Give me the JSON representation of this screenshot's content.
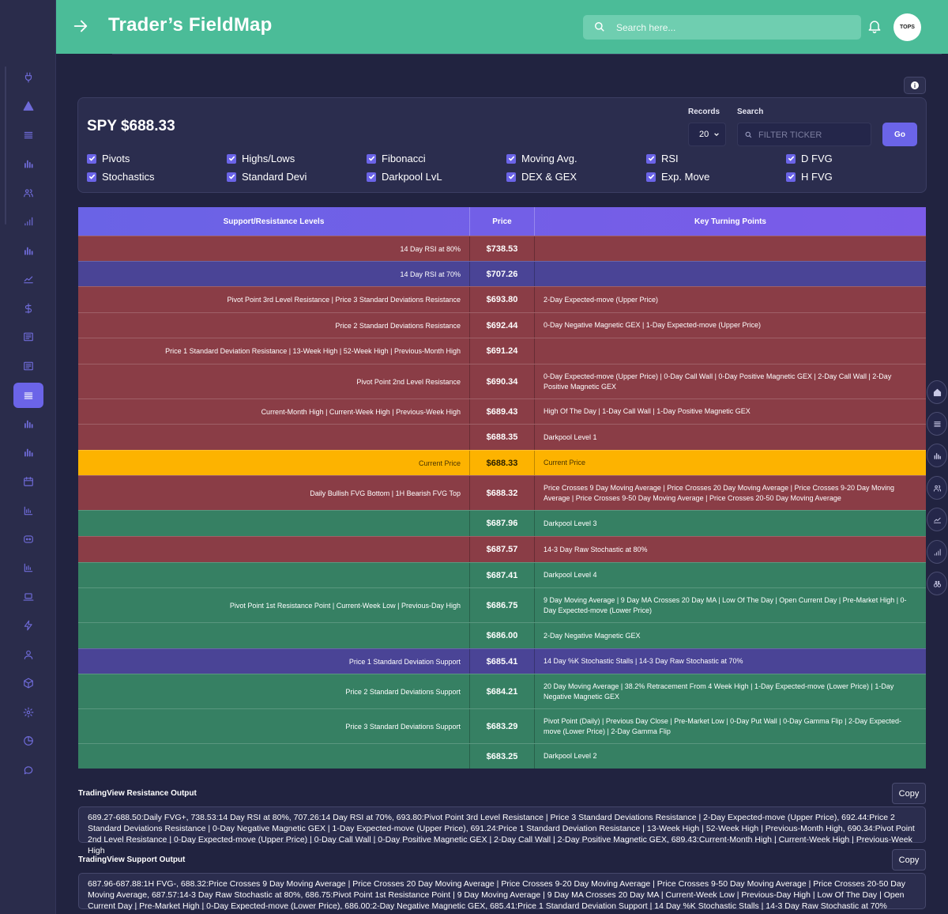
{
  "header": {
    "title": "Trader’s FieldMap",
    "search_placeholder": "Search here...",
    "avatar_text": "TOPS"
  },
  "sidebar": {
    "icons": [
      "plug-icon",
      "alert-icon",
      "list-icon",
      "bar-chart-icon",
      "users-icon",
      "signal-icon",
      "bar-chart-icon",
      "line-chart-icon",
      "dollar-icon",
      "newspaper-icon",
      "newspaper-icon",
      "layers-icon",
      "bar-chart-icon",
      "bar-chart-icon",
      "calendar-icon",
      "chart-icon",
      "discord-icon",
      "chart-icon",
      "laptop-icon",
      "bolt-icon",
      "user-icon",
      "cube-icon",
      "gear-icon",
      "pie-icon",
      "chat-icon"
    ],
    "active_index": 11
  },
  "panel": {
    "ticker": "SPY $688.33",
    "records_label": "Records",
    "records_value": "20",
    "search_label": "Search",
    "filter_placeholder": "FILTER TICKER",
    "go_label": "Go",
    "checkboxes": [
      {
        "label": "Pivots",
        "checked": true
      },
      {
        "label": "Highs/Lows",
        "checked": true
      },
      {
        "label": "Fibonacci",
        "checked": true
      },
      {
        "label": "Moving Avg.",
        "checked": true
      },
      {
        "label": "RSI",
        "checked": true
      },
      {
        "label": "D FVG",
        "checked": true
      },
      {
        "label": "Stochastics",
        "checked": true
      },
      {
        "label": "Standard Devi",
        "checked": true
      },
      {
        "label": "Darkpool LvL",
        "checked": true
      },
      {
        "label": "DEX & GEX",
        "checked": true
      },
      {
        "label": "Exp. Move",
        "checked": true
      },
      {
        "label": "H FVG",
        "checked": true
      }
    ]
  },
  "table": {
    "headers": [
      "Support/Resistance Levels",
      "Price",
      "Key Turning Points"
    ],
    "colors": {
      "red": "#8a3d46",
      "blue": "#4a4496",
      "green": "#368063",
      "gold": "#fdb300"
    },
    "rows": [
      {
        "color": "red",
        "sr": "14 Day RSI at 80%",
        "price": "$738.53",
        "ktp": ""
      },
      {
        "color": "blue",
        "sr": "14 Day RSI at 70%",
        "price": "$707.26",
        "ktp": ""
      },
      {
        "color": "red",
        "sr": "Pivot Point 3rd Level Resistance | Price 3 Standard Deviations Resistance",
        "price": "$693.80",
        "ktp": "2-Day Expected-move (Upper Price)"
      },
      {
        "color": "red",
        "sr": "Price 2 Standard Deviations Resistance",
        "price": "$692.44",
        "ktp": "0-Day Negative Magnetic GEX | 1-Day Expected-move (Upper Price)"
      },
      {
        "color": "red",
        "sr": "Price 1 Standard Deviation Resistance | 13-Week High | 52-Week High | Previous-Month High",
        "price": "$691.24",
        "ktp": ""
      },
      {
        "color": "red",
        "sr": "Pivot Point 2nd Level Resistance",
        "price": "$690.34",
        "ktp": "0-Day Expected-move (Upper Price) | 0-Day Call Wall | 0-Day Positive Magnetic GEX | 2-Day Call Wall | 2-Day Positive Magnetic GEX"
      },
      {
        "color": "red",
        "sr": "Current-Month High | Current-Week High | Previous-Week High",
        "price": "$689.43",
        "ktp": "High Of The Day | 1-Day Call Wall | 1-Day Positive Magnetic GEX"
      },
      {
        "color": "red",
        "sr": "",
        "price": "$688.35",
        "ktp": "Darkpool Level 1"
      },
      {
        "color": "gold",
        "sr": "Current Price",
        "price": "$688.33",
        "ktp": "Current Price"
      },
      {
        "color": "red",
        "sr": "Daily Bullish FVG Bottom | 1H Bearish FVG Top",
        "price": "$688.32",
        "ktp": "Price Crosses 9 Day Moving Average | Price Crosses 20 Day Moving Average | Price Crosses 9-20 Day Moving Average | Price Crosses 9-50 Day Moving Average | Price Crosses 20-50 Day Moving Average"
      },
      {
        "color": "green",
        "sr": "",
        "price": "$687.96",
        "ktp": "Darkpool Level 3"
      },
      {
        "color": "red",
        "sr": "",
        "price": "$687.57",
        "ktp": "14-3 Day Raw Stochastic at 80%"
      },
      {
        "color": "green",
        "sr": "",
        "price": "$687.41",
        "ktp": "Darkpool Level 4"
      },
      {
        "color": "green",
        "sr": "Pivot Point 1st Resistance Point | Current-Week Low | Previous-Day High",
        "price": "$686.75",
        "ktp": "9 Day Moving Average | 9 Day MA Crosses 20 Day MA | Low Of The Day | Open Current Day | Pre-Market High | 0-Day Expected-move (Lower Price)"
      },
      {
        "color": "green",
        "sr": "",
        "price": "$686.00",
        "ktp": "2-Day Negative Magnetic GEX"
      },
      {
        "color": "blue",
        "sr": "Price 1 Standard Deviation Support",
        "price": "$685.41",
        "ktp": "14 Day %K Stochastic Stalls | 14-3 Day Raw Stochastic at 70%"
      },
      {
        "color": "green",
        "sr": "Price 2 Standard Deviations Support",
        "price": "$684.21",
        "ktp": "20 Day Moving Average | 38.2% Retracement From 4 Week High | 1-Day Expected-move (Lower Price) | 1-Day Negative Magnetic GEX"
      },
      {
        "color": "green",
        "sr": "Price 3 Standard Deviations Support",
        "price": "$683.29",
        "ktp": "Pivot Point (Daily) | Previous Day Close | Pre-Market Low | 0-Day Put Wall | 0-Day Gamma Flip | 2-Day Expected-move (Lower Price) | 2-Day Gamma Flip"
      },
      {
        "color": "green",
        "sr": "",
        "price": "$683.25",
        "ktp": "Darkpool Level 2"
      }
    ]
  },
  "resistance_output": {
    "title": "TradingView Resistance Output",
    "copy_label": "Copy",
    "text": "689.27-688.50:Daily FVG+, 738.53:14 Day RSI at 80%, 707.26:14 Day RSI at 70%, 693.80:Pivot Point 3rd Level Resistance | Price 3 Standard Deviations Resistance | 2-Day Expected-move (Upper Price), 692.44:Price 2 Standard Deviations Resistance | 0-Day Negative Magnetic GEX | 1-Day Expected-move (Upper Price), 691.24:Price 1 Standard Deviation Resistance | 13-Week High | 52-Week High | Previous-Month High, 690.34:Pivot Point 2nd Level Resistance | 0-Day Expected-move (Upper Price) | 0-Day Call Wall | 0-Day Positive Magnetic GEX | 2-Day Call Wall | 2-Day Positive Magnetic GEX, 689.43:Current-Month High | Current-Week High | Previous-Week High"
  },
  "support_output": {
    "title": "TradingView Support Output",
    "copy_label": "Copy",
    "text": "687.96-687.88:1H FVG-, 688.32:Price Crosses 9 Day Moving Average | Price Crosses 20 Day Moving Average | Price Crosses 9-20 Day Moving Average | Price Crosses 9-50 Day Moving Average | Price Crosses 20-50 Day Moving Average, 687.57:14-3 Day Raw Stochastic at 80%, 686.75:Pivot Point 1st Resistance Point | 9 Day Moving Average | 9 Day MA Crosses 20 Day MA | Current-Week Low | Previous-Day High | Low Of The Day | Open Current Day | Pre-Market High | 0-Day Expected-move (Lower Price), 686.00:2-Day Negative Magnetic GEX, 685.41:Price 1 Standard Deviation Support | 14 Day %K Stochastic Stalls | 14-3 Day Raw Stochastic at 70%"
  },
  "right_floating_icons": [
    "home-icon",
    "list-icon",
    "bar-chart-icon",
    "users-icon",
    "line-chart-icon",
    "signal-icon",
    "binoculars-icon"
  ]
}
